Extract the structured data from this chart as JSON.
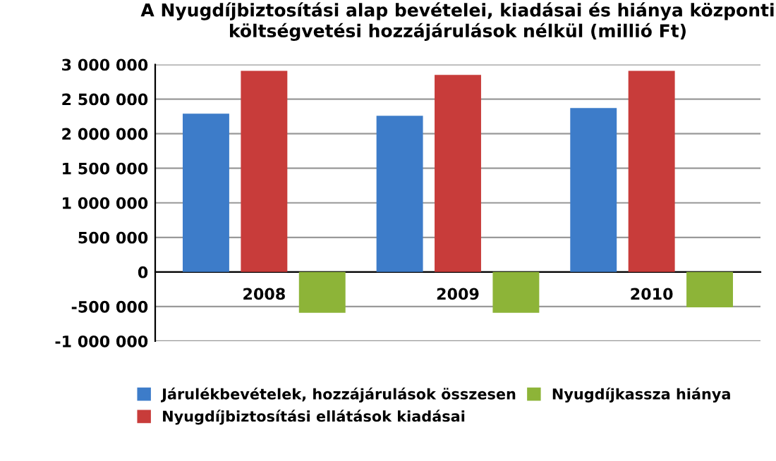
{
  "chart_data": {
    "type": "bar",
    "title": "A Nyugdíjbiztosítási alap bevételei, kiadásai és hiánya központi\nköltségvetési hozzájárulások nélkül (millió Ft)",
    "categories": [
      "2008",
      "2009",
      "2010"
    ],
    "series": [
      {
        "name": "Járulékbevételek, hozzájárulások összesen",
        "color": "#3d7cc9",
        "values": [
          2290000,
          2260000,
          2370000
        ]
      },
      {
        "name": "Nyugdíjbiztosítási ellátások kiadásai",
        "color": "#c83c3a",
        "values": [
          2910000,
          2850000,
          2910000
        ]
      },
      {
        "name": "Nyugdíjkassza hiánya",
        "color": "#8db438",
        "values": [
          -590000,
          -590000,
          -510000
        ]
      }
    ],
    "ylim": [
      -1000000,
      3000000
    ],
    "yticks": [
      {
        "value": -1000000,
        "label": "-1 000 000"
      },
      {
        "value": -500000,
        "label": "-500 000"
      },
      {
        "value": 0,
        "label": "0"
      },
      {
        "value": 500000,
        "label": "500 000"
      },
      {
        "value": 1000000,
        "label": "1 000 000"
      },
      {
        "value": 1500000,
        "label": "1 500 000"
      },
      {
        "value": 2000000,
        "label": "2 000 000"
      },
      {
        "value": 2500000,
        "label": "2 500 000"
      },
      {
        "value": 3000000,
        "label": "3 000 000"
      }
    ],
    "grid": "y",
    "legend": "bottom"
  }
}
